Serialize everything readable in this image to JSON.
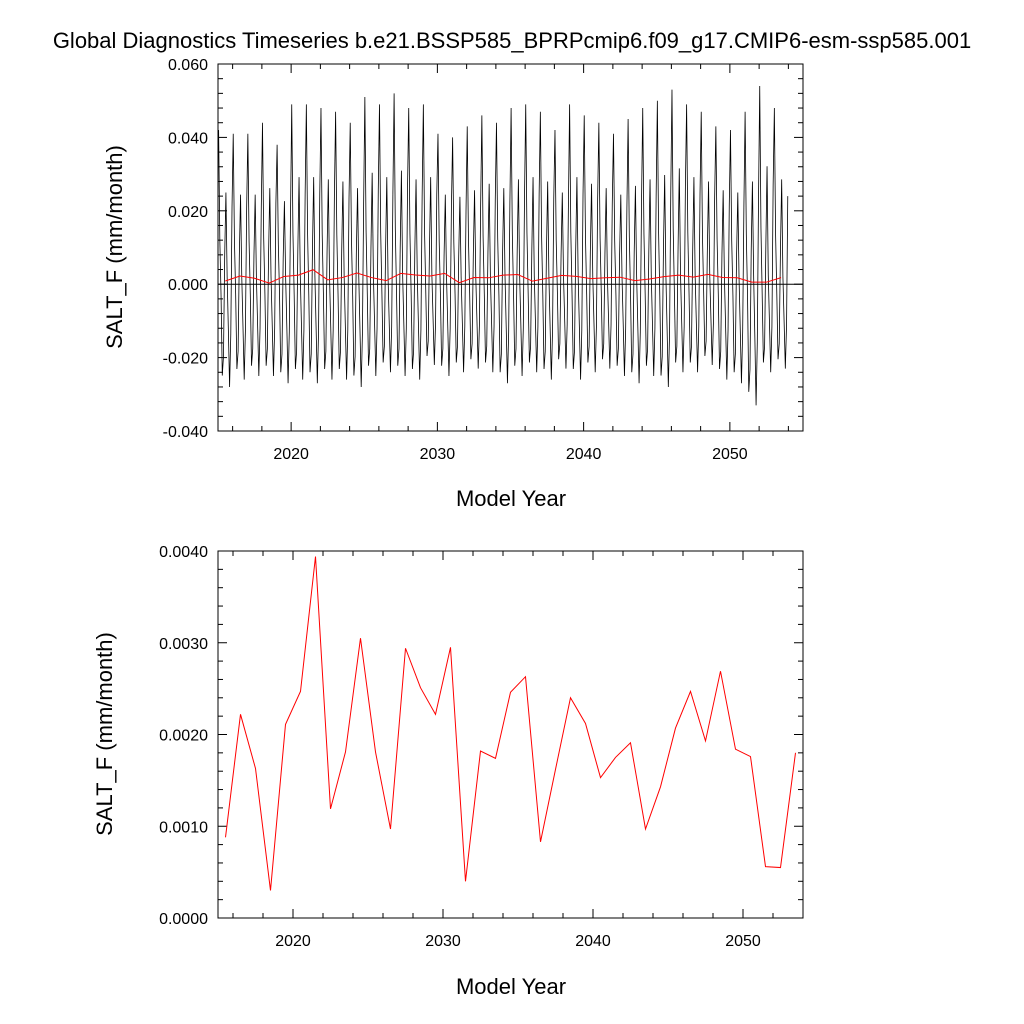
{
  "title": "Global Diagnostics Timeseries b.e21.BSSP585_BPRPcmip6.f09_g17.CMIP6-esm-ssp585.001",
  "colors": {
    "monthly": "#000000",
    "annual": "#ff0000",
    "zero_line": "#000000"
  },
  "chart_data": [
    {
      "type": "line",
      "xlabel": "Model Year",
      "ylabel": "SALT_F (mm/month)",
      "xlim": [
        2015,
        2055
      ],
      "ylim": [
        -0.04,
        0.06
      ],
      "xticks": [
        2020,
        2030,
        2040,
        2050
      ],
      "yticks": [
        -0.04,
        -0.02,
        0.0,
        0.02,
        0.04,
        0.06
      ],
      "ytick_labels": [
        "-0.040",
        "-0.020",
        "0.000",
        "0.020",
        "0.040",
        "0.060"
      ],
      "zero_line": true,
      "grid": false,
      "monthly_pattern": [
        0.042,
        0.012,
        -0.003,
        -0.024,
        -0.019,
        0.008,
        0.025,
        0.002,
        -0.012,
        -0.027,
        -0.013,
        0.021
      ],
      "monthly_peaks": [
        0.042,
        0.041,
        0.041,
        0.044,
        0.038,
        0.049,
        0.049,
        0.048,
        0.047,
        0.044,
        0.051,
        0.049,
        0.052,
        0.048,
        0.049,
        0.041,
        0.04,
        0.043,
        0.046,
        0.044,
        0.048,
        0.049,
        0.047,
        0.042,
        0.049,
        0.046,
        0.044,
        0.041,
        0.045,
        0.048,
        0.05,
        0.053,
        0.049,
        0.047,
        0.043,
        0.042,
        0.047,
        0.054,
        0.048
      ],
      "monthly_troughs": [
        -0.028,
        -0.026,
        -0.025,
        -0.025,
        -0.027,
        -0.026,
        -0.027,
        -0.026,
        -0.026,
        -0.028,
        -0.025,
        -0.024,
        -0.025,
        -0.026,
        -0.022,
        -0.025,
        -0.024,
        -0.023,
        -0.024,
        -0.027,
        -0.025,
        -0.024,
        -0.026,
        -0.023,
        -0.026,
        -0.024,
        -0.023,
        -0.025,
        -0.027,
        -0.025,
        -0.028,
        -0.024,
        -0.024,
        -0.022,
        -0.026,
        -0.027,
        -0.033,
        -0.024,
        -0.023
      ],
      "series": [
        {
          "name": "",
          "color": "#000000",
          "kind": "monthly"
        },
        {
          "name": "",
          "color": "#ff0000",
          "kind": "annual"
        }
      ]
    },
    {
      "type": "line",
      "xlabel": "Model Year",
      "ylabel": "SALT_F (mm/month)",
      "xlim": [
        2015,
        2054
      ],
      "ylim": [
        0.0,
        0.004
      ],
      "xticks": [
        2020,
        2030,
        2040,
        2050
      ],
      "yticks": [
        0.0,
        0.001,
        0.002,
        0.003,
        0.004
      ],
      "ytick_labels": [
        "0.0000",
        "0.0010",
        "0.0020",
        "0.0030",
        "0.0040"
      ],
      "grid": false,
      "series": [
        {
          "name": "",
          "color": "#ff0000",
          "x": [
            2015.5,
            2016.5,
            2017.5,
            2018.5,
            2019.5,
            2020.5,
            2021.5,
            2022.5,
            2023.5,
            2024.5,
            2025.5,
            2026.5,
            2027.5,
            2028.5,
            2029.5,
            2030.5,
            2031.5,
            2032.5,
            2033.5,
            2034.5,
            2035.5,
            2036.5,
            2037.5,
            2038.5,
            2039.5,
            2040.5,
            2041.5,
            2042.5,
            2043.5,
            2044.5,
            2045.5,
            2046.5,
            2047.5,
            2048.5,
            2049.5,
            2050.5,
            2051.5,
            2052.5,
            2053.5
          ],
          "values": [
            0.00088,
            0.00222,
            0.00163,
            0.0003,
            0.00211,
            0.00247,
            0.00394,
            0.00119,
            0.00181,
            0.00305,
            0.00181,
            0.00097,
            0.00294,
            0.00251,
            0.00222,
            0.00295,
            0.0004,
            0.00182,
            0.00174,
            0.00246,
            0.00263,
            0.00083,
            0.00162,
            0.0024,
            0.00212,
            0.00153,
            0.00175,
            0.00191,
            0.00097,
            0.00143,
            0.00207,
            0.00247,
            0.00193,
            0.00269,
            0.00184,
            0.00176,
            0.00056,
            0.00055,
            0.0018
          ]
        }
      ]
    }
  ]
}
